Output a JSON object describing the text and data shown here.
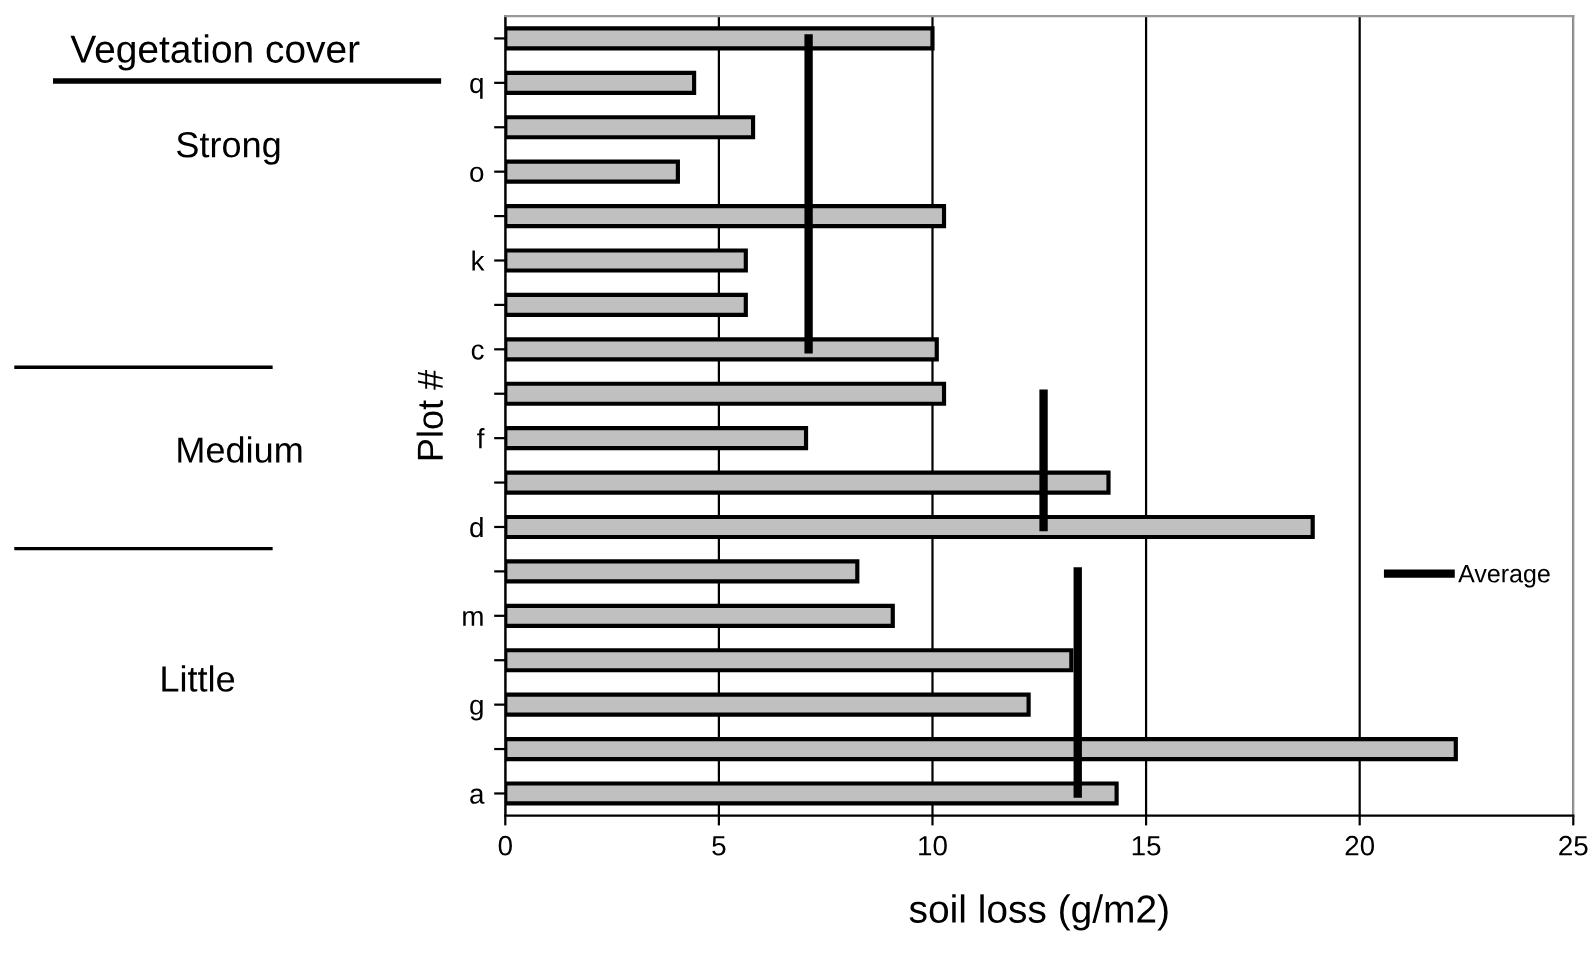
{
  "chart_data": {
    "type": "bar",
    "orientation": "horizontal",
    "categories": [
      null,
      "q",
      null,
      "o",
      null,
      "k",
      null,
      "c",
      null,
      "f",
      null,
      "d",
      null,
      "m",
      null,
      "g",
      null,
      "a"
    ],
    "xlabel": "soil loss (g/m2)",
    "ylabel": "Plot #",
    "series": [
      {
        "color": "#c0c0c0",
        "values": [
          10.0,
          4.42,
          5.8,
          4.04,
          10.27,
          5.63,
          5.63,
          10.1,
          10.27,
          7.04,
          14.12,
          18.9,
          8.24,
          9.07,
          13.25,
          12.25,
          22.25,
          14.31
        ]
      },
      {
        "type": "line",
        "name": "Average",
        "color": "#000000",
        "values": [
          7.1,
          7.1,
          7.1,
          7.1,
          7.1,
          7.1,
          7.1,
          7.1,
          null,
          null,
          null,
          null,
          null,
          null,
          null,
          null,
          null,
          null
        ]
      },
      {
        "type": "line",
        "color": "#000000",
        "values": [
          null,
          null,
          null,
          null,
          null,
          null,
          null,
          null,
          12.6,
          12.6,
          12.6,
          12.6,
          null,
          null,
          null,
          null,
          null,
          null
        ]
      },
      {
        "type": "line",
        "color": "#000000",
        "values": [
          null,
          null,
          null,
          null,
          null,
          null,
          null,
          null,
          null,
          null,
          null,
          null,
          13.4,
          13.4,
          13.4,
          13.4,
          13.4,
          13.4
        ]
      }
    ],
    "xlim": [
      0,
      25
    ],
    "xticks": [
      0,
      5,
      10,
      15,
      20,
      25
    ],
    "grid": "x",
    "legend": "right",
    "marker": "none",
    "line_style": "solid",
    "annotations": [
      "Vegetation cover",
      "Strong",
      "Medium",
      "Little"
    ]
  }
}
